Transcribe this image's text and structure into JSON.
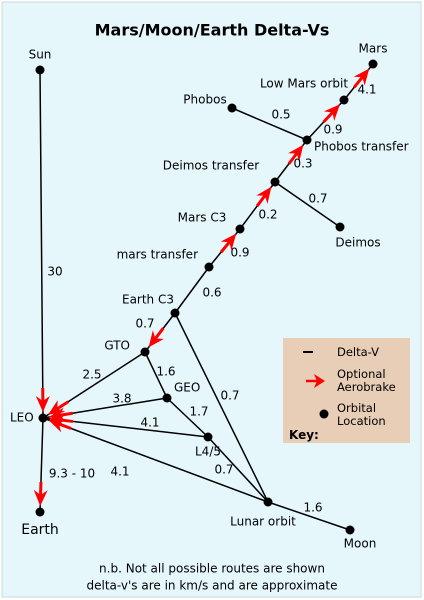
{
  "title": "Mars/Moon/Earth Delta-Vs",
  "nodes": [
    {
      "label": "Sun"
    },
    {
      "label": "LEO"
    },
    {
      "label": "Earth"
    },
    {
      "label": "GTO"
    },
    {
      "label": "GEO"
    },
    {
      "label": "L4/5"
    },
    {
      "label": "Lunar orbit"
    },
    {
      "label": "Moon"
    },
    {
      "label": "Earth C3"
    },
    {
      "label": "mars transfer"
    },
    {
      "label": "Mars C3"
    },
    {
      "label": "Deimos transfer"
    },
    {
      "label": "Deimos"
    },
    {
      "label": "Phobos transfer"
    },
    {
      "label": "Phobos"
    },
    {
      "label": "Low Mars orbit"
    },
    {
      "label": "Mars"
    }
  ],
  "edges": [
    {
      "label": "30"
    },
    {
      "label": "9.3 - 10"
    },
    {
      "label": "2.5"
    },
    {
      "label": "3.8"
    },
    {
      "label": "4.1"
    },
    {
      "label": "4.1"
    },
    {
      "label": "0.7"
    },
    {
      "label": "1.6"
    },
    {
      "label": "1.7"
    },
    {
      "label": "0.7"
    },
    {
      "label": "0.7"
    },
    {
      "label": "1.6"
    },
    {
      "label": "0.6"
    },
    {
      "label": "0.9"
    },
    {
      "label": "0.2"
    },
    {
      "label": "0.7"
    },
    {
      "label": "0.3"
    },
    {
      "label": "0.5"
    },
    {
      "label": "0.9"
    },
    {
      "label": "4.1"
    }
  ],
  "key": {
    "title": "Key:",
    "items": [
      "Delta-V",
      "Optional Aerobrake",
      "Orbital Location"
    ]
  },
  "notes": [
    "n.b. Not all possible routes are shown",
    "delta-v's are in km/s and are approximate"
  ]
}
